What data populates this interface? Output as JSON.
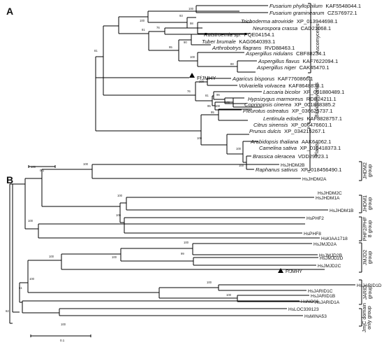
{
  "panels": {
    "a": {
      "letter": "A"
    },
    "b": {
      "letter": "B"
    }
  },
  "panel_a": {
    "marker_label": "FfJMHY",
    "taxa": [
      {
        "species": "Fusarium phyllophilum",
        "accession": "KAF5548044.1"
      },
      {
        "species": "Fusarium graminearum",
        "accession": "CZS76972.1"
      },
      {
        "species": "Trichoderma atroviride",
        "accession": "XP_013944698.1"
      },
      {
        "species": "Neurospora crassa",
        "accession": "CAD21068.1"
      },
      {
        "species": "Rutstroemia sp.",
        "accession": "PQE04154.1"
      },
      {
        "species": "Tuber brumale",
        "accession": "KAG0640393.1"
      },
      {
        "species": "Arthrobotrys flagrans",
        "accession": "RVD88463.1"
      },
      {
        "species": "Aspergillus nidulans",
        "accession": "CBF88234.1"
      },
      {
        "species": "Aspergillus flavus",
        "accession": "KAF7622094.1"
      },
      {
        "species": "Aspergillus niger",
        "accession": "CAK45470.1"
      },
      {
        "species": "Agaricus bisporus",
        "accession": "KAF7760866.1"
      },
      {
        "species": "Volvariella volvacea",
        "accession": "KAF8648878.1"
      },
      {
        "species": "Laccaria bicolor",
        "accession": "XP_001880489.1"
      },
      {
        "species": "Hypsizygus marmoreus",
        "accession": "RDB24211.1"
      },
      {
        "species": "Coprinopsis cinerea",
        "accession": "XP_001838385.2"
      },
      {
        "species": "Pleurotus ostreatus",
        "accession": "XP_036625737.1"
      },
      {
        "species": "Lentinula edodes",
        "accession": "KAF8828757.1"
      },
      {
        "species": "Citrus sinensis",
        "accession": "XP_006476601.1"
      },
      {
        "species": "Prunus dulcis",
        "accession": "XP_034215267.1"
      },
      {
        "species": "Arabidopsis thaliana",
        "accession": "AAK64062.1"
      },
      {
        "species": "Camelina sativa",
        "accession": "XP_010418373.1"
      },
      {
        "species": "Brassica oleracea",
        "accession": "VDD29223.1"
      },
      {
        "species": "Raphanus sativus",
        "accession": "XP_018456490.1"
      }
    ],
    "bootstrap": [
      "93",
      "100",
      "98",
      "100",
      "76",
      "81",
      "90",
      "95",
      "100",
      "88",
      "81",
      "76",
      "100",
      "81",
      "96",
      "95",
      "100",
      "95",
      "100",
      "100",
      "100",
      "100"
    ],
    "groups": [
      "Ascomycetes",
      "Basidiomycetes",
      "Plants"
    ],
    "scale": "0.1"
  },
  "panel_b": {
    "marker_label": "FfJMHY",
    "genes": [
      "HsJHDM2B",
      "HsJHDM2A",
      "HsJHDM2C",
      "HsJHDM1A",
      "HsJHDM1B",
      "HsPHF2",
      "HsPHF8",
      "HsKIAA1718",
      "HsJMJD2A",
      "HsJMJD2B",
      "HsJMJD2D",
      "HsJMJD2C",
      "HsJARID1D",
      "HsJARID1C",
      "HsJARID1B",
      "HsJARID1A",
      "HsNO66",
      "HsLOC339123",
      "HsMINA53"
    ],
    "bootstrap": [
      "100",
      "100",
      "100",
      "100",
      "100",
      "100",
      "99",
      "100",
      "100",
      "100",
      "100",
      "100",
      "61",
      "62",
      "100"
    ],
    "groups": [
      {
        "l1": "JHDM2",
        "l2": "group"
      },
      {
        "l1": "JHDM1",
        "l2": "group"
      },
      {
        "l1": "PHF2/PHF",
        "l2": "8 group"
      },
      {
        "l1": "JMJD2",
        "l2": "group"
      },
      {
        "l1": "JARID",
        "l2": "group"
      },
      {
        "l1": "JmjC domain",
        "l2": "only group"
      }
    ],
    "scale": "0.1"
  }
}
